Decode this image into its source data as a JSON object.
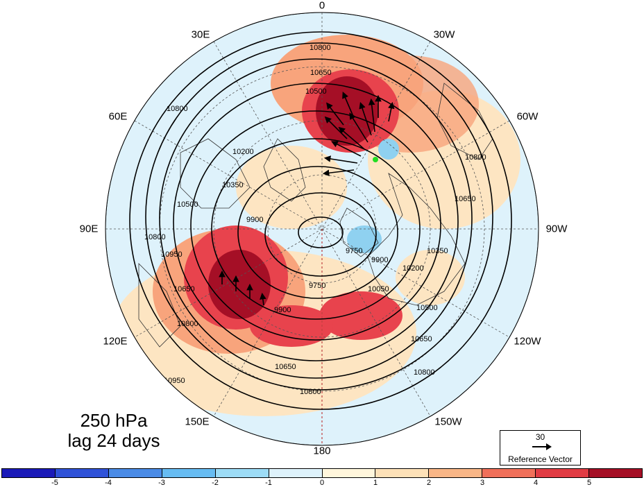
{
  "map": {
    "longitude_labels": [
      "0",
      "30W",
      "60W",
      "90W",
      "120W",
      "150W",
      "180",
      "150E",
      "120E",
      "90E",
      "60E",
      "30E"
    ],
    "contour_labels": [
      "10800",
      "10650",
      "10500",
      "10350",
      "10200",
      "10050",
      "9900",
      "9750",
      "10950"
    ],
    "anomaly_colors": {
      "strong_positive": "#a50f26",
      "positive": "#e8434d",
      "moderate_positive": "#f8a47c",
      "weak_positive": "#fde5c2",
      "weak_negative": "#def2fb",
      "negative": "#8fd1f0"
    },
    "marker_color": "#22dd22"
  },
  "caption": {
    "level": "250 hPa",
    "lag": "lag 24 days"
  },
  "reference_vector": {
    "value": "30",
    "label": "Reference Vector"
  },
  "colorbar": {
    "ticks": [
      "-5",
      "-4",
      "-3",
      "-2",
      "-1",
      "0",
      "1",
      "2",
      "3",
      "4",
      "5"
    ],
    "colors": [
      "#1a1ab8",
      "#2f52d8",
      "#4a8be6",
      "#67bcf2",
      "#9ddcf6",
      "#def2fb",
      "#fff6dc",
      "#fde1b8",
      "#f9b687",
      "#f0705a",
      "#e13c44",
      "#a50f26"
    ]
  }
}
